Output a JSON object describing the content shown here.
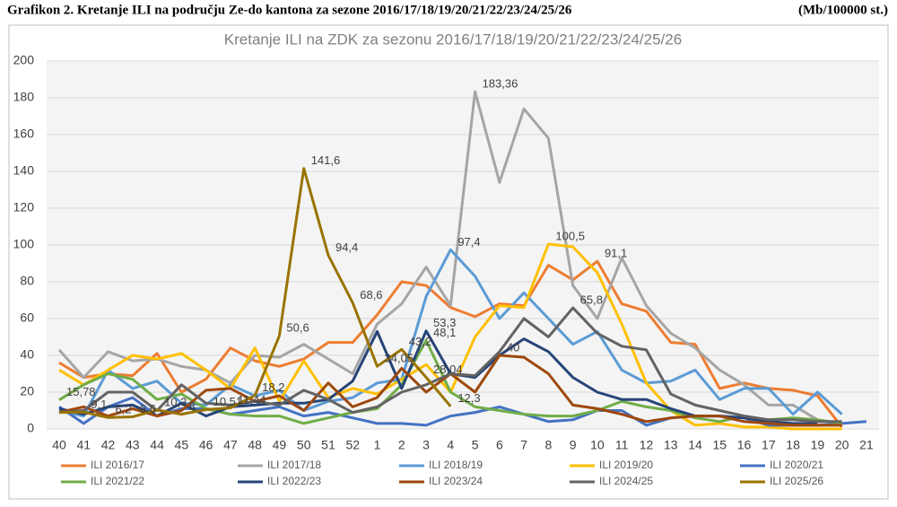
{
  "header": {
    "title": "Grafikon 2. Kretanje ILI na području Ze-do kantona za sezone 2016/17/18/19/20/21/22/23/24/25/26",
    "unit": "(Mb/100000 st.)"
  },
  "chart_data": {
    "type": "line",
    "title": "Kretanje ILI na ZDK za sezonu 2016/17/18/19/20/21/22/23/24/25/26",
    "categories": [
      "40",
      "41",
      "42",
      "43",
      "44",
      "45",
      "46",
      "47",
      "48",
      "49",
      "50",
      "51",
      "52",
      "1",
      "2",
      "3",
      "4",
      "5",
      "6",
      "7",
      "8",
      "9",
      "10",
      "11",
      "12",
      "13",
      "14",
      "15",
      "16",
      "17",
      "18",
      "19",
      "20",
      "21"
    ],
    "ylim": [
      0,
      200
    ],
    "yticks": [
      0,
      20,
      40,
      60,
      80,
      100,
      120,
      140,
      160,
      180,
      200
    ],
    "grid": true,
    "legend": "bottom",
    "series": [
      {
        "name": "ILI 2016/17",
        "color": "#ED7D31",
        "values": [
          36,
          28,
          30,
          29,
          41,
          20,
          27,
          44,
          37,
          34,
          38,
          47,
          47,
          62,
          80,
          78,
          66,
          61,
          68,
          67,
          89,
          81,
          91.1,
          68,
          64,
          47,
          46,
          22,
          25,
          22,
          21,
          18,
          1,
          null
        ],
        "value_labels": [
          null,
          null,
          null,
          null,
          null,
          null,
          null,
          null,
          null,
          null,
          null,
          null,
          null,
          null,
          null,
          null,
          null,
          null,
          null,
          null,
          null,
          null,
          "91,1",
          null,
          null,
          null,
          null,
          null,
          null,
          null,
          null,
          null,
          null,
          null
        ]
      },
      {
        "name": "ILI 2017/18",
        "color": "#A5A5A5",
        "values": [
          43,
          28,
          42,
          37,
          38,
          34,
          32,
          25,
          40,
          39,
          46,
          38,
          30,
          57,
          68,
          88,
          67,
          183.36,
          134,
          174,
          158,
          78,
          60,
          93,
          67,
          52,
          44,
          32,
          24,
          13,
          13,
          5,
          3,
          null
        ],
        "value_labels": [
          null,
          null,
          null,
          null,
          null,
          null,
          null,
          null,
          null,
          null,
          null,
          null,
          null,
          null,
          null,
          null,
          null,
          "183,36",
          null,
          null,
          null,
          null,
          null,
          null,
          null,
          null,
          null,
          null,
          null,
          null,
          null,
          null,
          null,
          null
        ]
      },
      {
        "name": "ILI 2018/19",
        "color": "#5B9BD5",
        "values": [
          10,
          7,
          32,
          22,
          26,
          14,
          13,
          24,
          18,
          21,
          10,
          15,
          17,
          25,
          27,
          72,
          97.4,
          83,
          60,
          74,
          60,
          46,
          53,
          32,
          25,
          26,
          32,
          16,
          22,
          22,
          8,
          20,
          8,
          null
        ],
        "value_labels": [
          null,
          null,
          null,
          null,
          null,
          null,
          null,
          null,
          null,
          null,
          null,
          null,
          null,
          null,
          null,
          null,
          "97,4",
          null,
          null,
          null,
          null,
          null,
          null,
          null,
          null,
          null,
          null,
          null,
          null,
          null,
          null,
          null,
          null,
          null
        ]
      },
      {
        "name": "ILI 2019/20",
        "color": "#FFC000",
        "values": [
          32,
          24,
          32,
          40,
          38,
          41,
          32,
          22,
          44,
          15,
          37,
          17,
          22,
          19,
          27,
          35,
          20,
          50,
          67,
          66,
          100.5,
          99,
          85,
          57,
          25,
          10,
          2,
          3,
          1,
          1,
          0,
          0,
          0,
          null
        ],
        "value_labels": [
          null,
          null,
          null,
          null,
          null,
          null,
          null,
          null,
          null,
          null,
          null,
          null,
          null,
          null,
          null,
          null,
          null,
          null,
          null,
          null,
          "100,5",
          null,
          null,
          null,
          null,
          null,
          null,
          null,
          null,
          null,
          null,
          null,
          null,
          null
        ]
      },
      {
        "name": "ILI 2020/21",
        "color": "#4472C4",
        "values": [
          12,
          3,
          12,
          17,
          7,
          11,
          11,
          8,
          10,
          12,
          7,
          9,
          6,
          3,
          3,
          2,
          7,
          9,
          12,
          8,
          4,
          5,
          10,
          10,
          2,
          6,
          7,
          7,
          6,
          2,
          2,
          2,
          3,
          4
        ]
      },
      {
        "name": "ILI 2021/22",
        "color": "#70AD47",
        "values": [
          15.78,
          24,
          30,
          27,
          16,
          19,
          11,
          8,
          7,
          7,
          3,
          6,
          9,
          11,
          24,
          48.1,
          20,
          12,
          10,
          8,
          7,
          7,
          10,
          15,
          12,
          10,
          6,
          4,
          7,
          5,
          6,
          5,
          3,
          null
        ],
        "value_labels": [
          "15,78",
          null,
          null,
          null,
          null,
          null,
          null,
          null,
          null,
          null,
          null,
          null,
          null,
          null,
          null,
          "48,1",
          null,
          null,
          null,
          null,
          null,
          null,
          null,
          null,
          null,
          null,
          null,
          null,
          null,
          null,
          null,
          null,
          null,
          null
        ]
      },
      {
        "name": "ILI 2022/23",
        "color": "#264478",
        "values": [
          11,
          8,
          12,
          13,
          7,
          14,
          7,
          12,
          13,
          14,
          14,
          16,
          26,
          53,
          22,
          53.3,
          30,
          28,
          40,
          49,
          42,
          28,
          20,
          16,
          16,
          11,
          7,
          7,
          6,
          4,
          3,
          3,
          null,
          null
        ],
        "value_labels": [
          null,
          null,
          null,
          null,
          null,
          null,
          null,
          null,
          null,
          null,
          null,
          null,
          null,
          null,
          null,
          "53,3",
          null,
          null,
          null,
          null,
          null,
          null,
          null,
          null,
          null,
          null,
          null,
          null,
          null,
          null,
          null,
          null,
          null,
          null
        ]
      },
      {
        "name": "ILI 2023/24",
        "color": "#9E480E",
        "values": [
          9,
          12,
          7,
          11,
          7,
          10,
          21,
          22,
          15,
          18,
          10,
          25,
          12,
          17,
          33,
          20,
          30,
          20,
          40,
          39,
          30,
          13,
          11,
          8,
          4,
          6,
          7,
          7,
          4,
          3,
          2,
          2,
          2,
          null
        ],
        "value_labels": [
          null,
          null,
          null,
          null,
          null,
          null,
          null,
          null,
          null,
          null,
          null,
          null,
          null,
          null,
          null,
          null,
          null,
          null,
          "40",
          null,
          null,
          null,
          null,
          null,
          null,
          null,
          null,
          null,
          null,
          null,
          null,
          null,
          null,
          null
        ]
      },
      {
        "name": "ILI 2024/25",
        "color": "#636363",
        "values": [
          9,
          10,
          20,
          20,
          10,
          24,
          14,
          13,
          15,
          13,
          21,
          16,
          9,
          12,
          20,
          24,
          30,
          29,
          42,
          60,
          50,
          65.8,
          52,
          45,
          43,
          19,
          13,
          10,
          7,
          5,
          5,
          4,
          4,
          null
        ],
        "value_labels": [
          null,
          null,
          null,
          null,
          null,
          null,
          null,
          null,
          null,
          null,
          null,
          null,
          null,
          null,
          null,
          null,
          null,
          null,
          null,
          null,
          null,
          "65,8",
          null,
          null,
          null,
          null,
          null,
          null,
          null,
          null,
          null,
          null,
          null,
          null
        ]
      },
      {
        "name": "ILI 2025/26",
        "color": "#997300",
        "values": [
          9,
          9.1,
          6.2,
          6.6,
          10.3,
          8,
          10.51,
          11.44,
          18.2,
          50.6,
          141.6,
          94.4,
          68.6,
          34.05,
          43.2,
          28.04,
          12.3,
          null,
          null,
          null,
          null,
          null,
          null,
          null,
          null,
          null,
          null,
          null,
          null,
          null,
          null,
          null,
          null,
          null
        ],
        "value_labels": [
          null,
          "9,1",
          "6,2",
          "6,6",
          "10,3",
          "8",
          "10,51",
          "11,44",
          "18,2",
          "50,6",
          "141,6",
          "94,4",
          "68,6",
          "34,05",
          "43,2",
          "28,04",
          "12,3",
          null,
          null,
          null,
          null,
          null,
          null,
          null,
          null,
          null,
          null,
          null,
          null,
          null,
          null,
          null,
          null,
          null
        ]
      }
    ]
  }
}
